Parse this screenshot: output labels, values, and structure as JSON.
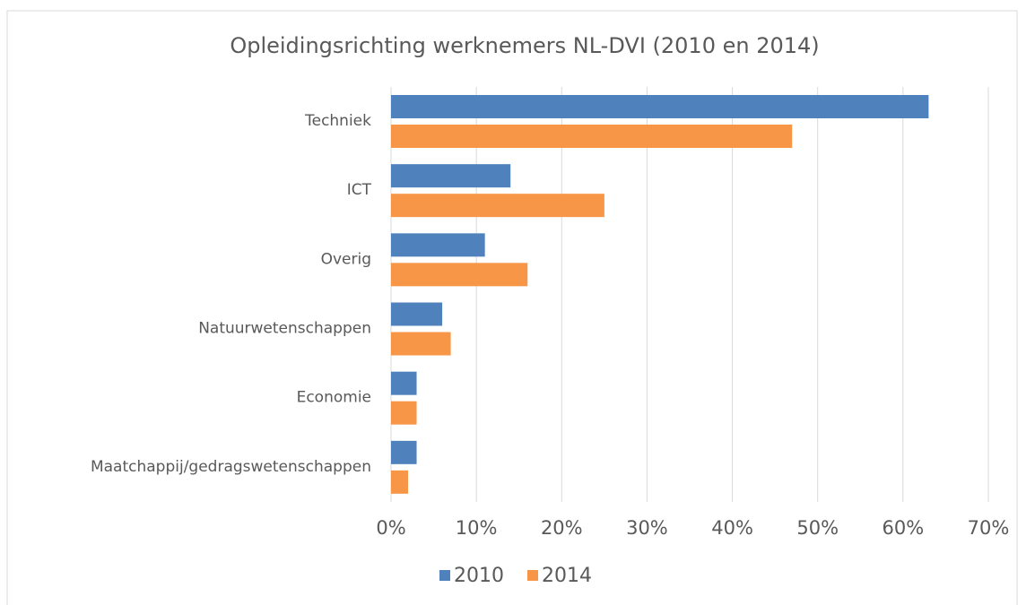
{
  "chart_data": {
    "type": "hbar",
    "title": "Opleidingsrichting werknemers NL-DVI (2010 en 2014)",
    "categories": [
      "Techniek",
      "ICT",
      "Overig",
      "Natuurwetenschappen",
      "Economie",
      "Maatchappij/gedragswetenschappen"
    ],
    "series": [
      {
        "name": "2010",
        "color": "#4f81bd",
        "values": [
          63,
          14,
          11,
          6,
          3,
          3
        ]
      },
      {
        "name": "2014",
        "color": "#f79646",
        "values": [
          47,
          25,
          16,
          7,
          3,
          2
        ]
      }
    ],
    "xlim": [
      0,
      70
    ],
    "xticks": [
      {
        "value": 0,
        "label": "0%"
      },
      {
        "value": 10,
        "label": "10%"
      },
      {
        "value": 20,
        "label": "20%"
      },
      {
        "value": 30,
        "label": "30%"
      },
      {
        "value": 40,
        "label": "40%"
      },
      {
        "value": 50,
        "label": "50%"
      },
      {
        "value": 60,
        "label": "60%"
      },
      {
        "value": 70,
        "label": "70%"
      }
    ],
    "grid": true,
    "legend": "bottom"
  }
}
